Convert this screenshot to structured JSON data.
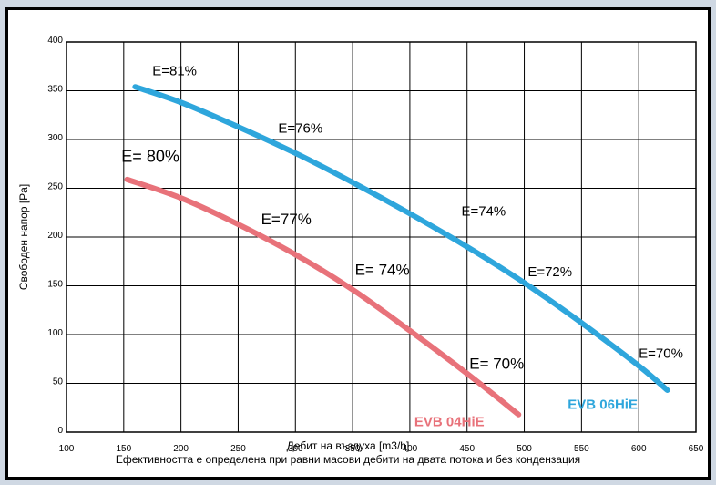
{
  "chart_data": {
    "type": "line",
    "title": "",
    "xlabel": "Дебит на въздуха [m3/h]",
    "ylabel": "Свободен напор [Pa]",
    "footnote": "Ефективността е определена при равни масови дебити на двата потока и без кондензация",
    "xlim": [
      100,
      650
    ],
    "ylim": [
      0,
      400
    ],
    "xticks": [
      "100",
      "150",
      "200",
      "250",
      "300",
      "350",
      "400",
      "450",
      "500",
      "550",
      "600",
      "650"
    ],
    "yticks": [
      "0",
      "50",
      "100",
      "150",
      "200",
      "250",
      "300",
      "350",
      "400"
    ],
    "grid": true,
    "series": [
      {
        "name": "EVB 06HiE",
        "color": "#2ea6dc",
        "x": [
          160,
          200,
          250,
          300,
          350,
          400,
          450,
          500,
          550,
          600,
          625
        ],
        "y": [
          354,
          338,
          313,
          286,
          256,
          224,
          190,
          153,
          112,
          68,
          43
        ]
      },
      {
        "name": "EVB 04HiE",
        "color": "#e8727a",
        "x": [
          153,
          200,
          250,
          300,
          350,
          400,
          450,
          495
        ],
        "y": [
          259,
          240,
          213,
          182,
          146,
          104,
          60,
          18
        ]
      }
    ],
    "annotations": [
      {
        "text": "E=81%",
        "x": 175,
        "y": 366,
        "size": 15
      },
      {
        "text": "E=76%",
        "x": 285,
        "y": 307,
        "size": 15
      },
      {
        "text": "E=74%",
        "x": 445,
        "y": 222,
        "size": 15
      },
      {
        "text": "E=72%",
        "x": 503,
        "y": 160,
        "size": 15
      },
      {
        "text": "E=70%",
        "x": 600,
        "y": 76,
        "size": 15
      },
      {
        "text": "E= 80%",
        "x": 148,
        "y": 277,
        "size": 18
      },
      {
        "text": "E=77%",
        "x": 270,
        "y": 213,
        "size": 17
      },
      {
        "text": "E= 74%",
        "x": 352,
        "y": 161,
        "size": 17
      },
      {
        "text": "E= 70%",
        "x": 452,
        "y": 65,
        "size": 17
      }
    ]
  }
}
